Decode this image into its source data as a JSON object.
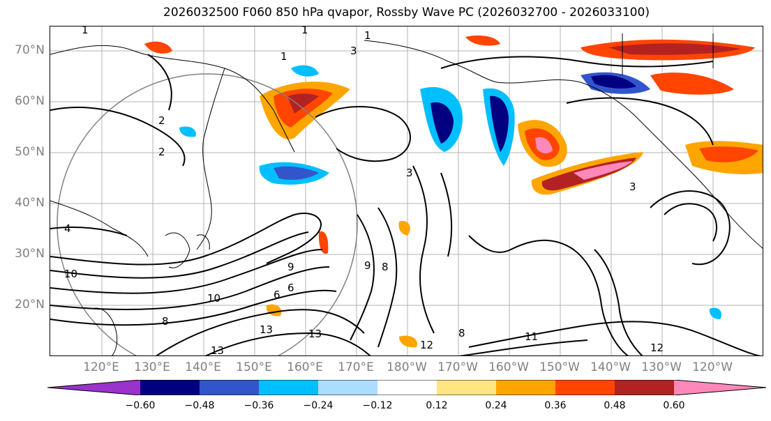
{
  "title": "2026032500 F060 850 hPa qvapor, Rossby Wave PC (2026032700 - 2026033100)",
  "map": {
    "lat_labels": [
      "70°N",
      "60°N",
      "50°N",
      "40°N",
      "30°N",
      "20°N"
    ],
    "lon_labels": [
      "120°E",
      "130°E",
      "140°E",
      "150°E",
      "160°E",
      "170°E",
      "180°W",
      "170°W",
      "160°W",
      "150°W",
      "140°W",
      "130°W",
      "120°W"
    ],
    "contour_labels": [
      "1",
      "1",
      "1",
      "1",
      "2",
      "2",
      "3",
      "3",
      "3",
      "4",
      "6",
      "6",
      "8",
      "8",
      "8",
      "9",
      "9",
      "10",
      "10",
      "11",
      "12",
      "12",
      "13",
      "13",
      "13"
    ]
  },
  "colorbar": {
    "colors": [
      "#9933cc",
      "#000080",
      "#3355cc",
      "#00bfff",
      "#aaddff",
      "#ffffff",
      "#ffe680",
      "#ffa500",
      "#ff4500",
      "#b22222",
      "#ff88bb"
    ],
    "ticks": [
      "−0.60",
      "−0.48",
      "−0.36",
      "−0.24",
      "−0.12",
      "0.12",
      "0.24",
      "0.36",
      "0.48",
      "0.60"
    ]
  }
}
